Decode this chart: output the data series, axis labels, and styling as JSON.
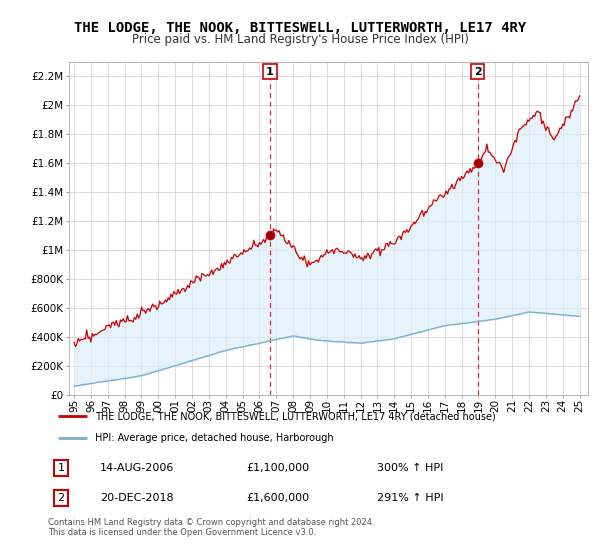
{
  "title": "THE LODGE, THE NOOK, BITTESWELL, LUTTERWORTH, LE17 4RY",
  "subtitle": "Price paid vs. HM Land Registry's House Price Index (HPI)",
  "title_fontsize": 10,
  "subtitle_fontsize": 8.5,
  "ylim": [
    0,
    2300000
  ],
  "yticks": [
    0,
    200000,
    400000,
    600000,
    800000,
    1000000,
    1200000,
    1400000,
    1600000,
    1800000,
    2000000,
    2200000
  ],
  "ytick_labels": [
    "£0",
    "£200K",
    "£400K",
    "£600K",
    "£800K",
    "£1M",
    "£1.2M",
    "£1.4M",
    "£1.6M",
    "£1.8M",
    "£2M",
    "£2.2M"
  ],
  "hpi_color": "#7ab0d4",
  "hpi_fill_color": "#dceef8",
  "price_color": "#cc0000",
  "marker1_value": 1100000,
  "marker2_value": 1600000,
  "marker1_year": 2006.62,
  "marker2_year": 2018.96,
  "legend_line1": "THE LODGE, THE NOOK, BITTESWELL, LUTTERWORTH, LE17 4RY (detached house)",
  "legend_line2": "HPI: Average price, detached house, Harborough",
  "annotation1_date": "14-AUG-2006",
  "annotation1_price": "£1,100,000",
  "annotation1_hpi": "300% ↑ HPI",
  "annotation2_date": "20-DEC-2018",
  "annotation2_price": "£1,600,000",
  "annotation2_hpi": "291% ↑ HPI",
  "footnote": "Contains HM Land Registry data © Crown copyright and database right 2024.\nThis data is licensed under the Open Government Licence v3.0.",
  "background_color": "#ffffff",
  "grid_color": "#cccccc"
}
